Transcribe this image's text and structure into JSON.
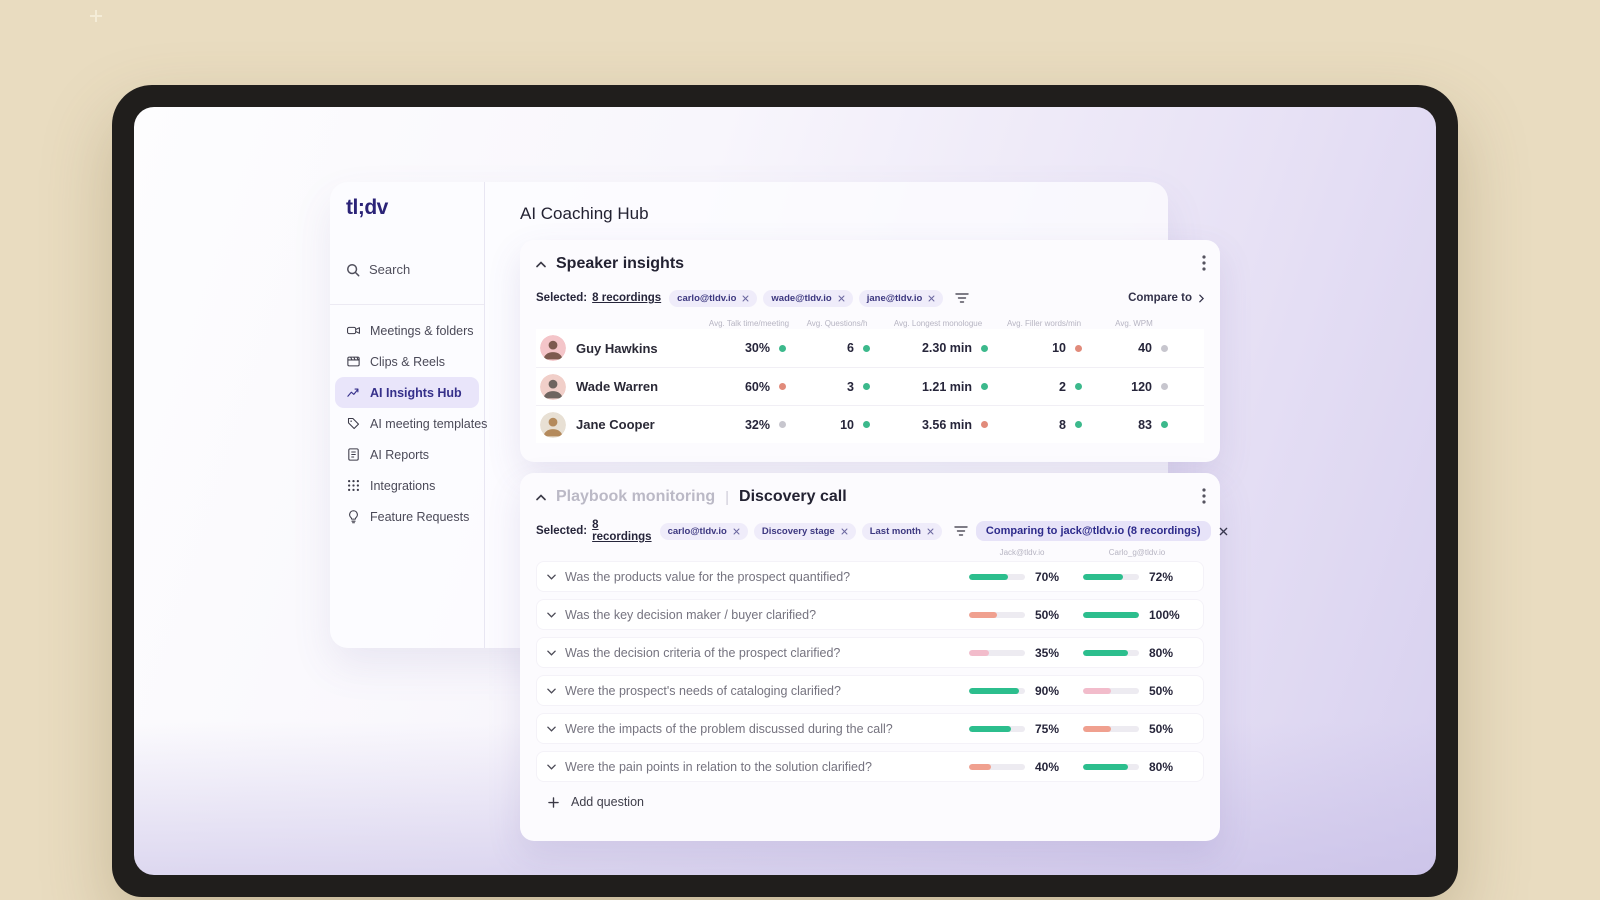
{
  "sidebar": {
    "logo": "tl;dv",
    "search_label": "Search",
    "items": [
      {
        "label": "Meetings & folders",
        "icon": "video-camera-icon",
        "active": false
      },
      {
        "label": "Clips & Reels",
        "icon": "clapperboard-icon",
        "active": false
      },
      {
        "label": "AI Insights Hub",
        "icon": "trend-chart-icon",
        "active": true
      },
      {
        "label": "AI meeting templates",
        "icon": "tag-icon",
        "active": false
      },
      {
        "label": "AI Reports",
        "icon": "report-icon",
        "active": false
      },
      {
        "label": "Integrations",
        "icon": "grid-dots-icon",
        "active": false
      },
      {
        "label": "Feature Requests",
        "icon": "lightbulb-icon",
        "active": false
      }
    ]
  },
  "header": {
    "title": "AI Coaching Hub"
  },
  "speaker": {
    "title": "Speaker insights",
    "selected_label": "Selected:",
    "selected_link": "8 recordings",
    "chips": [
      "carlo@tldv.io",
      "wade@tldv.io",
      "jane@tldv.io"
    ],
    "compare_button": "Compare to",
    "columns": [
      "Avg. Talk time/meeting",
      "Avg. Questions/h",
      "Avg. Longest monologue",
      "Avg. Filler words/min",
      "Avg. WPM"
    ],
    "rows": [
      {
        "name": "Guy Hawkins",
        "avatar_bg": "#f4c5c9",
        "avatar_tone": "#7d5a4f",
        "values": [
          {
            "text": "30%",
            "dot": "green"
          },
          {
            "text": "6",
            "dot": "green"
          },
          {
            "text": "2.30 min",
            "dot": "green"
          },
          {
            "text": "10",
            "dot": "red"
          },
          {
            "text": "40",
            "dot": "gray"
          }
        ]
      },
      {
        "name": "Wade Warren",
        "avatar_bg": "#f1cfc9",
        "avatar_tone": "#6e645f",
        "values": [
          {
            "text": "60%",
            "dot": "red"
          },
          {
            "text": "3",
            "dot": "green"
          },
          {
            "text": "1.21 min",
            "dot": "green"
          },
          {
            "text": "2",
            "dot": "green"
          },
          {
            "text": "120",
            "dot": "gray"
          }
        ]
      },
      {
        "name": "Jane Cooper",
        "avatar_bg": "#e8e0d4",
        "avatar_tone": "#b48a5c",
        "values": [
          {
            "text": "32%",
            "dot": "gray"
          },
          {
            "text": "10",
            "dot": "green"
          },
          {
            "text": "3.56 min",
            "dot": "red"
          },
          {
            "text": "8",
            "dot": "green"
          },
          {
            "text": "83",
            "dot": "green"
          }
        ]
      }
    ]
  },
  "playbook": {
    "title_muted": "Playbook monitoring",
    "divider": "|",
    "title": "Discovery call",
    "selected_label": "Selected:",
    "selected_link": "8 recordings",
    "chips": [
      "carlo@tldv.io",
      "Discovery stage",
      "Last month"
    ],
    "comparing_label": "Comparing to jack@tldv.io (8 recordings)",
    "col1": "Jack@tldv.io",
    "col2": "Carlo_g@tldv.io",
    "questions": [
      {
        "text": "Was the products value for the prospect quantified?",
        "bars": [
          {
            "pct": 70,
            "label": "70%",
            "color": "green"
          },
          {
            "pct": 72,
            "label": "72%",
            "color": "green"
          }
        ]
      },
      {
        "text": "Was the key decision maker / buyer clarified?",
        "bars": [
          {
            "pct": 50,
            "label": "50%",
            "color": "salmon"
          },
          {
            "pct": 100,
            "label": "100%",
            "color": "green"
          }
        ]
      },
      {
        "text": "Was the decision criteria of the prospect clarified?",
        "bars": [
          {
            "pct": 35,
            "label": "35%",
            "color": "pink"
          },
          {
            "pct": 80,
            "label": "80%",
            "color": "green"
          }
        ]
      },
      {
        "text": "Were the prospect's needs of cataloging clarified?",
        "bars": [
          {
            "pct": 90,
            "label": "90%",
            "color": "green"
          },
          {
            "pct": 50,
            "label": "50%",
            "color": "pink"
          }
        ]
      },
      {
        "text": "Were the impacts of the problem discussed during the call?",
        "bars": [
          {
            "pct": 75,
            "label": "75%",
            "color": "green"
          },
          {
            "pct": 50,
            "label": "50%",
            "color": "salmon"
          }
        ]
      },
      {
        "text": "Were the pain points in relation to the solution clarified?",
        "bars": [
          {
            "pct": 40,
            "label": "40%",
            "color": "salmon"
          },
          {
            "pct": 80,
            "label": "80%",
            "color": "green"
          }
        ]
      }
    ],
    "add_question_label": "Add question"
  },
  "colors": {
    "accent_indigo": "#2b2377",
    "dot": {
      "green": "#3cb98c",
      "red": "#e18b7b",
      "gray": "#c7c6ce"
    },
    "bar": {
      "green": "#2cbe8d",
      "salmon": "#f0a08f",
      "pink": "#f2bccb"
    },
    "bar_track": "#edebf1"
  }
}
